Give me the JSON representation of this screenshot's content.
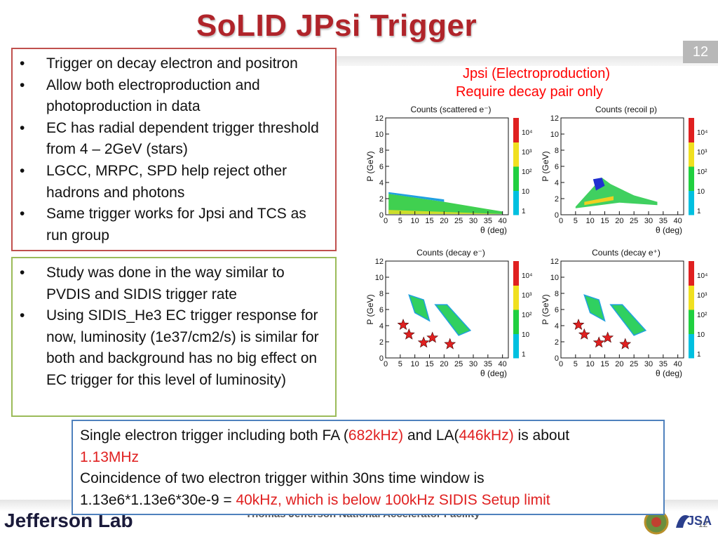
{
  "slide": {
    "title": "SoLID JPsi Trigger",
    "number": "12",
    "footer_number": "12"
  },
  "left_box_1": {
    "items": [
      "Trigger on decay electron and positron",
      "Allow both electroproduction and photoproduction in data",
      "EC has radial dependent trigger threshold from 4 – 2GeV (stars)",
      "LGCC, MRPC, SPD help reject other hadrons and photons",
      "Same trigger works for Jpsi and TCS as run group"
    ]
  },
  "left_box_2": {
    "items": [
      "Study was done in the way similar to PVDIS and SIDIS trigger rate",
      "Using SIDIS_He3 EC trigger response for now, luminosity (1e37/cm2/s) is similar for both and background has no big effect on EC trigger for this level of luminosity)"
    ]
  },
  "plots": {
    "caption_line1": "Jpsi (Electroproduction)",
    "caption_line2": "Require decay pair only",
    "ylabel": "P (GeV)",
    "xlabel": "θ (deg)",
    "x_ticks": [
      "0",
      "5",
      "10",
      "15",
      "20",
      "25",
      "30",
      "35",
      "40"
    ],
    "y_ticks": [
      "0",
      "2",
      "4",
      "6",
      "8",
      "10",
      "12"
    ],
    "z_ticks": [
      "1",
      "10",
      "10²",
      "10³",
      "10⁴"
    ],
    "panels": [
      {
        "title": "Counts (scattered e⁻)"
      },
      {
        "title": "Counts (recoil p)"
      },
      {
        "title": "Counts (decay e⁻)"
      },
      {
        "title": "Counts (decay e⁺)"
      }
    ],
    "colors": {
      "star": "#e02020",
      "box_red": "#c0504d",
      "box_green": "#9bbb59",
      "box_blue": "#4f81bd"
    }
  },
  "summary": {
    "l1_a": "Single electron trigger including  both FA (",
    "l1_fa": "682kHz)",
    "l1_b": " and LA(",
    "l1_la": "446kHz)",
    "l1_c": " is about",
    "l2": "1.13MHz",
    "l3": "Coincidence of two electron trigger within 30ns time window is",
    "l4_a": "1.13e6*1.13e6*30e-9 = ",
    "l4_b": "40kHz, which is below 100kHz SIDIS Setup limit"
  },
  "footer": {
    "lab": "Jefferson Lab",
    "facility": "Thomas Jefferson National Accelerator Facility",
    "jsa": "JSA"
  }
}
